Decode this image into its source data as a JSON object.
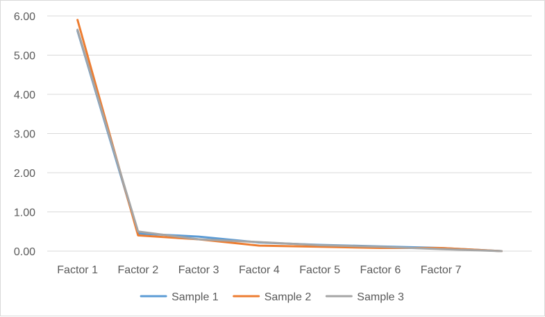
{
  "chart_data": {
    "type": "line",
    "categories": [
      "Factor 1",
      "Factor 2",
      "Factor 3",
      "Factor 4",
      "Factor 5",
      "Factor 6",
      "Factor 7",
      ""
    ],
    "series": [
      {
        "name": "Sample 1",
        "color": "#5b9bd5",
        "values": [
          5.62,
          0.45,
          0.37,
          0.22,
          0.16,
          0.12,
          0.08,
          0.0
        ]
      },
      {
        "name": "Sample 2",
        "color": "#ed7d31",
        "values": [
          5.9,
          0.4,
          0.3,
          0.14,
          0.11,
          0.08,
          0.08,
          0.0
        ]
      },
      {
        "name": "Sample 3",
        "color": "#a5a5a5",
        "values": [
          5.65,
          0.5,
          0.3,
          0.23,
          0.15,
          0.11,
          0.05,
          0.0
        ]
      }
    ],
    "yticks": [
      "0.00",
      "1.00",
      "2.00",
      "3.00",
      "4.00",
      "5.00",
      "6.00"
    ],
    "ylim": [
      0,
      6
    ],
    "grid": true,
    "legend": "bottom",
    "title": "",
    "xlabel": "",
    "ylabel": ""
  }
}
